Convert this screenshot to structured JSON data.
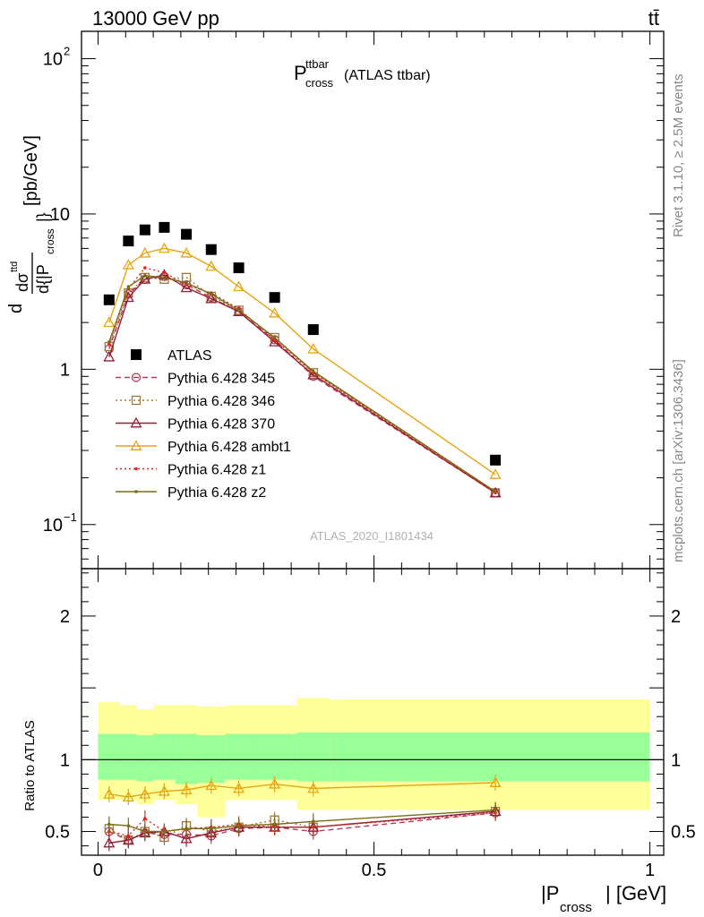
{
  "header": {
    "left": "13000 GeV pp",
    "right": "tt̄"
  },
  "side": {
    "rivet": "Rivet 3.1.10, ≥ 2.5M events",
    "mcplots": "mcplots.cern.ch [arXiv:1306.3436]"
  },
  "plot_title": {
    "main": "P",
    "sup": "ttbar",
    "sub": "cross",
    "suffix": "(ATLAS ttbar)"
  },
  "watermark": "ATLAS_2020_I1801434",
  "upper_ylabel": {
    "d1": "d",
    "dsigma": "dσ",
    "sup": "ttd",
    "den": "d{|P",
    "densub": "cross",
    "den_close": "|}",
    "units": "[pb/GeV]"
  },
  "lower_ylabel": "Ratio to ATLAS",
  "xlabel": {
    "main": "|P",
    "sub": "cross",
    "close": "| [GeV]"
  },
  "colors": {
    "atlas": "#000000",
    "p345": "#b43c5a",
    "p346": "#a0783c",
    "p370": "#961e37",
    "ambt1": "#e6a514",
    "z1": "#dc281e",
    "z2": "#786e14",
    "band_outer": "#ffff99",
    "band_inner": "#99ff99"
  },
  "chart_data": [
    {
      "type": "scatter",
      "panel": "main",
      "yscale": "log",
      "xlim": [
        -0.03,
        1.025
      ],
      "ylim": [
        0.052,
        150
      ],
      "x_ticks": [
        0,
        0.5,
        1
      ],
      "x_tick_labels": [
        "0",
        "0.5",
        "1"
      ],
      "y_tick_labels": [
        {
          "value": 100,
          "base": "10",
          "exp": "2"
        },
        {
          "value": 10,
          "base": "10",
          "exp": ""
        },
        {
          "value": 1,
          "base": "1",
          "exp": ""
        },
        {
          "value": 0.1,
          "base": "10",
          "exp": "−1"
        }
      ],
      "x": [
        0.02,
        0.055,
        0.085,
        0.12,
        0.16,
        0.205,
        0.255,
        0.32,
        0.39,
        0.72
      ],
      "series": [
        {
          "name": "ATLAS",
          "key": "atlas",
          "marker": "square",
          "line": "none",
          "values": [
            2.8,
            6.7,
            7.9,
            8.2,
            7.4,
            5.9,
            4.5,
            2.9,
            1.8,
            0.26
          ]
        },
        {
          "name": "Pythia 6.428 345",
          "key": "p345",
          "marker": "circle-open",
          "line": "dashed",
          "values": [
            1.35,
            3.05,
            3.8,
            3.95,
            3.5,
            2.9,
            2.35,
            1.55,
            0.9,
            0.16
          ]
        },
        {
          "name": "Pythia 6.428 346",
          "key": "p346",
          "marker": "square-open",
          "line": "dotted",
          "values": [
            1.4,
            3.1,
            3.9,
            3.8,
            3.9,
            2.95,
            2.4,
            1.6,
            0.95,
            0.16
          ]
        },
        {
          "name": "Pythia 6.428 370",
          "key": "p370",
          "marker": "triangle-open",
          "line": "solid",
          "values": [
            1.2,
            2.9,
            3.8,
            4.05,
            3.35,
            2.85,
            2.35,
            1.5,
            0.92,
            0.16
          ]
        },
        {
          "name": "Pythia 6.428 ambt1",
          "key": "ambt1",
          "marker": "triangle-open",
          "line": "solid",
          "values": [
            2.0,
            4.7,
            5.6,
            6.0,
            5.6,
            4.6,
            3.4,
            2.3,
            1.35,
            0.21
          ]
        },
        {
          "name": "Pythia 6.428 z1",
          "key": "z1",
          "marker": "dot",
          "line": "dotted",
          "values": [
            1.45,
            3.3,
            4.5,
            4.2,
            3.5,
            3.1,
            2.45,
            1.55,
            0.95,
            0.16
          ]
        },
        {
          "name": "Pythia 6.428 z2",
          "key": "z2",
          "marker": "dot",
          "line": "solid",
          "values": [
            1.5,
            3.4,
            4.0,
            3.9,
            3.6,
            3.05,
            2.4,
            1.6,
            0.97,
            0.163
          ]
        }
      ]
    },
    {
      "type": "line",
      "panel": "ratio",
      "xlim": [
        -0.03,
        1.025
      ],
      "ylim": [
        0.335,
        2.33
      ],
      "y_ticks": [
        0.5,
        1,
        2
      ],
      "y_tick_labels": [
        "0.5",
        "1",
        "2"
      ],
      "x": [
        0.02,
        0.055,
        0.085,
        0.12,
        0.16,
        0.205,
        0.255,
        0.32,
        0.39,
        0.72
      ],
      "bands": {
        "edges": [
          0,
          0.04,
          0.07,
          0.1,
          0.14,
          0.18,
          0.23,
          0.28,
          0.36,
          0.42,
          1.0
        ],
        "outer_low": [
          0.72,
          0.72,
          0.69,
          0.72,
          0.69,
          0.6,
          0.72,
          0.72,
          0.65,
          0.65
        ],
        "outer_high": [
          1.4,
          1.38,
          1.35,
          1.38,
          1.38,
          1.37,
          1.38,
          1.38,
          1.43,
          1.42
        ],
        "inner_low": [
          0.86,
          0.86,
          0.85,
          0.86,
          0.83,
          0.84,
          0.86,
          0.86,
          0.85,
          0.85
        ],
        "inner_high": [
          1.18,
          1.18,
          1.17,
          1.18,
          1.18,
          1.17,
          1.18,
          1.18,
          1.19,
          1.19
        ]
      },
      "series": [
        {
          "name": "Pythia 6.428 345",
          "key": "p345",
          "marker": "circle-open",
          "line": "dashed",
          "values": [
            0.5,
            0.44,
            0.49,
            0.48,
            0.48,
            0.47,
            0.52,
            0.53,
            0.5,
            0.63
          ]
        },
        {
          "name": "Pythia 6.428 346",
          "key": "p346",
          "marker": "square-open",
          "line": "dotted",
          "values": [
            0.52,
            0.44,
            0.5,
            0.46,
            0.54,
            0.5,
            0.53,
            0.58,
            0.53,
            0.64
          ]
        },
        {
          "name": "Pythia 6.428 370",
          "key": "p370",
          "marker": "triangle-open",
          "line": "solid",
          "values": [
            0.42,
            0.44,
            0.49,
            0.5,
            0.45,
            0.49,
            0.53,
            0.53,
            0.53,
            0.64
          ]
        },
        {
          "name": "Pythia 6.428 ambt1",
          "key": "ambt1",
          "marker": "triangle-open",
          "line": "solid",
          "values": [
            0.76,
            0.74,
            0.76,
            0.78,
            0.79,
            0.82,
            0.8,
            0.83,
            0.8,
            0.84
          ]
        },
        {
          "name": "Pythia 6.428 z1",
          "key": "z1",
          "marker": "dot",
          "line": "dotted",
          "values": [
            0.5,
            0.47,
            0.59,
            0.5,
            0.52,
            0.53,
            0.55,
            0.53,
            0.53,
            0.63
          ]
        },
        {
          "name": "Pythia 6.428 z2",
          "key": "z2",
          "marker": "dot",
          "line": "solid",
          "values": [
            0.55,
            0.54,
            0.5,
            0.5,
            0.52,
            0.52,
            0.54,
            0.55,
            0.57,
            0.65
          ]
        }
      ]
    }
  ]
}
